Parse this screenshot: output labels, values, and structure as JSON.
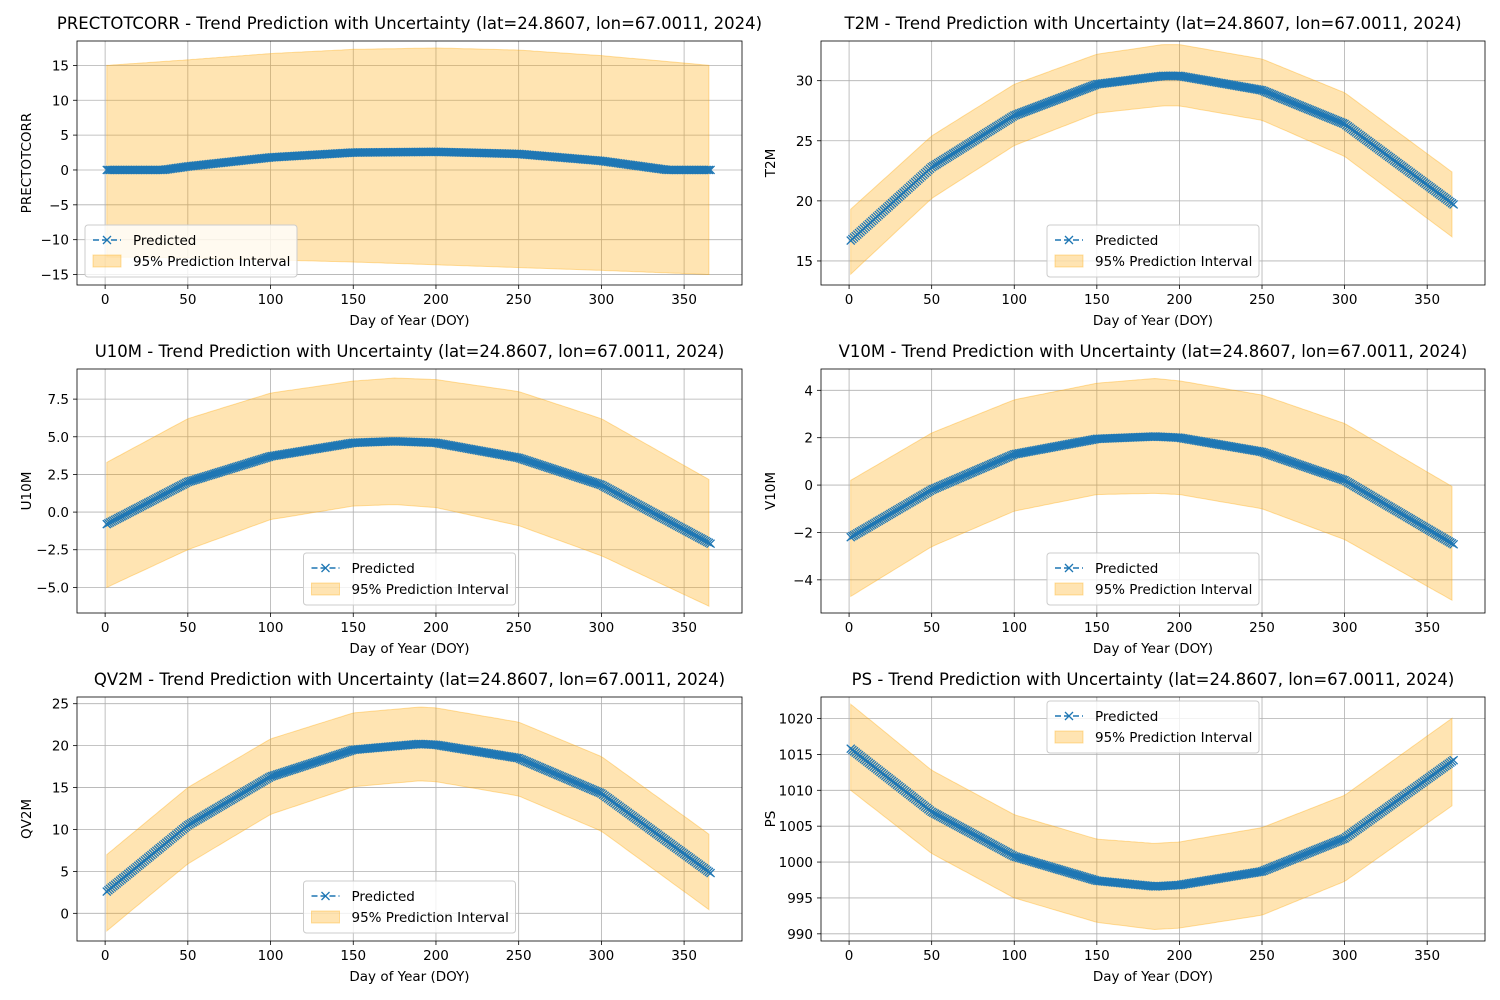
{
  "figure": {
    "band_color": "#ffa500",
    "band_opacity": 0.3,
    "line_color": "#1f77b4",
    "grid": true,
    "marker": "x",
    "line_style": "dashed"
  },
  "chart_data": [
    {
      "type": "line",
      "title": "PRECTOTCORR - Trend Prediction with Uncertainty (lat=24.8607, lon=67.0011, 2024)",
      "xlabel": "Day of Year (DOY)",
      "ylabel": "PRECTOTCORR",
      "xlim": [
        -17,
        385
      ],
      "ylim": [
        -16.5,
        18.5
      ],
      "xticks": [
        0,
        50,
        100,
        150,
        200,
        250,
        300,
        350
      ],
      "yticks": [
        -15,
        -10,
        -5,
        0,
        5,
        10,
        15
      ],
      "legend_loc": "lower-left",
      "legend": [
        "Predicted",
        "95% Prediction Interval"
      ],
      "series": [
        {
          "name": "Predicted",
          "x": [
            1,
            35,
            50,
            100,
            150,
            200,
            250,
            300,
            340,
            366
          ],
          "y": [
            0.0,
            0.0,
            0.5,
            1.8,
            2.5,
            2.6,
            2.3,
            1.3,
            0.0,
            0.0
          ]
        }
      ],
      "band": {
        "name": "95% Prediction Interval",
        "x": [
          1,
          50,
          100,
          150,
          200,
          250,
          300,
          366
        ],
        "lower": [
          -12.5,
          -12.6,
          -12.9,
          -13.2,
          -13.6,
          -14.0,
          -14.4,
          -15.0
        ],
        "upper": [
          15.0,
          15.8,
          16.7,
          17.3,
          17.5,
          17.2,
          16.4,
          15.0
        ]
      }
    },
    {
      "type": "line",
      "title": "T2M - Trend Prediction with Uncertainty (lat=24.8607, lon=67.0011, 2024)",
      "xlabel": "Day of Year (DOY)",
      "ylabel": "T2M",
      "xlim": [
        -17,
        385
      ],
      "ylim": [
        13.0,
        33.3
      ],
      "xticks": [
        0,
        50,
        100,
        150,
        200,
        250,
        300,
        350
      ],
      "yticks": [
        15,
        20,
        25,
        30
      ],
      "legend_loc": "lower-center",
      "legend": [
        "Predicted",
        "95% Prediction Interval"
      ],
      "series": [
        {
          "name": "Predicted",
          "x": [
            1,
            50,
            100,
            150,
            190,
            200,
            250,
            300,
            366
          ],
          "y": [
            16.7,
            22.8,
            27.1,
            29.7,
            30.4,
            30.4,
            29.2,
            26.4,
            19.7
          ]
        }
      ],
      "band": {
        "name": "95% Prediction Interval",
        "x": [
          1,
          50,
          100,
          150,
          190,
          200,
          250,
          300,
          366
        ],
        "lower": [
          13.9,
          20.2,
          24.6,
          27.3,
          27.9,
          27.9,
          26.7,
          23.7,
          16.9
        ],
        "upper": [
          19.3,
          25.4,
          29.7,
          32.2,
          33.0,
          33.0,
          31.8,
          29.0,
          22.3
        ]
      }
    },
    {
      "type": "line",
      "title": "U10M - Trend Prediction with Uncertainty (lat=24.8607, lon=67.0011, 2024)",
      "xlabel": "Day of Year (DOY)",
      "ylabel": "U10M",
      "xlim": [
        -17,
        385
      ],
      "ylim": [
        -6.7,
        9.5
      ],
      "xticks": [
        0,
        50,
        100,
        150,
        200,
        250,
        300,
        350
      ],
      "yticks": [
        -5.0,
        -2.5,
        0.0,
        2.5,
        5.0,
        7.5
      ],
      "legend_loc": "lower-center",
      "legend": [
        "Predicted",
        "95% Prediction Interval"
      ],
      "series": [
        {
          "name": "Predicted",
          "x": [
            1,
            50,
            100,
            150,
            175,
            200,
            250,
            300,
            366
          ],
          "y": [
            -0.8,
            2.0,
            3.7,
            4.6,
            4.7,
            4.6,
            3.6,
            1.8,
            -2.1
          ]
        }
      ],
      "band": {
        "name": "95% Prediction Interval",
        "x": [
          1,
          50,
          100,
          150,
          175,
          200,
          250,
          300,
          366
        ],
        "lower": [
          -5.0,
          -2.5,
          -0.5,
          0.4,
          0.5,
          0.3,
          -0.9,
          -2.9,
          -6.3
        ],
        "upper": [
          3.3,
          6.2,
          7.9,
          8.7,
          8.9,
          8.8,
          8.0,
          6.2,
          2.1
        ]
      }
    },
    {
      "type": "line",
      "title": "V10M - Trend Prediction with Uncertainty (lat=24.8607, lon=67.0011, 2024)",
      "xlabel": "Day of Year (DOY)",
      "ylabel": "V10M",
      "xlim": [
        -17,
        385
      ],
      "ylim": [
        -5.4,
        4.9
      ],
      "xticks": [
        0,
        50,
        100,
        150,
        200,
        250,
        300,
        350
      ],
      "yticks": [
        -4,
        -2,
        0,
        2,
        4
      ],
      "legend_loc": "lower-center",
      "legend": [
        "Predicted",
        "95% Prediction Interval"
      ],
      "series": [
        {
          "name": "Predicted",
          "x": [
            1,
            50,
            100,
            150,
            185,
            200,
            250,
            300,
            366
          ],
          "y": [
            -2.2,
            -0.2,
            1.3,
            1.95,
            2.05,
            2.0,
            1.4,
            0.2,
            -2.5
          ]
        }
      ],
      "band": {
        "name": "95% Prediction Interval",
        "x": [
          1,
          50,
          100,
          150,
          185,
          200,
          250,
          300,
          366
        ],
        "lower": [
          -4.7,
          -2.6,
          -1.1,
          -0.4,
          -0.35,
          -0.4,
          -1.0,
          -2.3,
          -4.9
        ],
        "upper": [
          0.2,
          2.2,
          3.6,
          4.3,
          4.5,
          4.4,
          3.8,
          2.6,
          -0.1
        ]
      }
    },
    {
      "type": "line",
      "title": "QV2M - Trend Prediction with Uncertainty (lat=24.8607, lon=67.0011, 2024)",
      "xlabel": "Day of Year (DOY)",
      "ylabel": "QV2M",
      "xlim": [
        -17,
        385
      ],
      "ylim": [
        -3.3,
        25.8
      ],
      "xticks": [
        0,
        50,
        100,
        150,
        200,
        250,
        300,
        350
      ],
      "yticks": [
        0,
        5,
        10,
        15,
        20,
        25
      ],
      "legend_loc": "lower-center",
      "legend": [
        "Predicted",
        "95% Prediction Interval"
      ],
      "series": [
        {
          "name": "Predicted",
          "x": [
            1,
            50,
            100,
            150,
            190,
            200,
            250,
            300,
            366
          ],
          "y": [
            2.6,
            10.5,
            16.3,
            19.5,
            20.2,
            20.1,
            18.5,
            14.3,
            4.8
          ]
        }
      ],
      "band": {
        "name": "95% Prediction Interval",
        "x": [
          1,
          50,
          100,
          150,
          190,
          200,
          250,
          300,
          366
        ],
        "lower": [
          -2.1,
          5.9,
          11.8,
          15.1,
          15.8,
          15.7,
          14.0,
          9.8,
          0.3
        ],
        "upper": [
          7.0,
          15.0,
          20.8,
          23.9,
          24.6,
          24.5,
          22.8,
          18.7,
          9.3
        ]
      }
    },
    {
      "type": "line",
      "title": "PS - Trend Prediction with Uncertainty (lat=24.8607, lon=67.0011, 2024)",
      "xlabel": "Day of Year (DOY)",
      "ylabel": "PS",
      "xlim": [
        -17,
        385
      ],
      "ylim": [
        989.0,
        1023.0
      ],
      "xticks": [
        0,
        50,
        100,
        150,
        200,
        250,
        300,
        350
      ],
      "yticks": [
        990,
        995,
        1000,
        1005,
        1010,
        1015,
        1020
      ],
      "legend_loc": "upper-center",
      "legend": [
        "Predicted",
        "95% Prediction Interval"
      ],
      "series": [
        {
          "name": "Predicted",
          "x": [
            1,
            50,
            100,
            150,
            185,
            200,
            250,
            300,
            366
          ],
          "y": [
            1015.8,
            1007.0,
            1000.8,
            997.4,
            996.6,
            996.8,
            998.7,
            1003.3,
            1014.2
          ]
        }
      ],
      "band": {
        "name": "95% Prediction Interval",
        "x": [
          1,
          50,
          100,
          150,
          185,
          200,
          250,
          300,
          366
        ],
        "lower": [
          1010.0,
          1001.2,
          995.0,
          991.6,
          990.6,
          990.8,
          992.6,
          997.3,
          1008.0
        ],
        "upper": [
          1022.0,
          1012.8,
          1006.6,
          1003.2,
          1002.6,
          1002.8,
          1004.8,
          1009.3,
          1020.2
        ]
      }
    }
  ]
}
